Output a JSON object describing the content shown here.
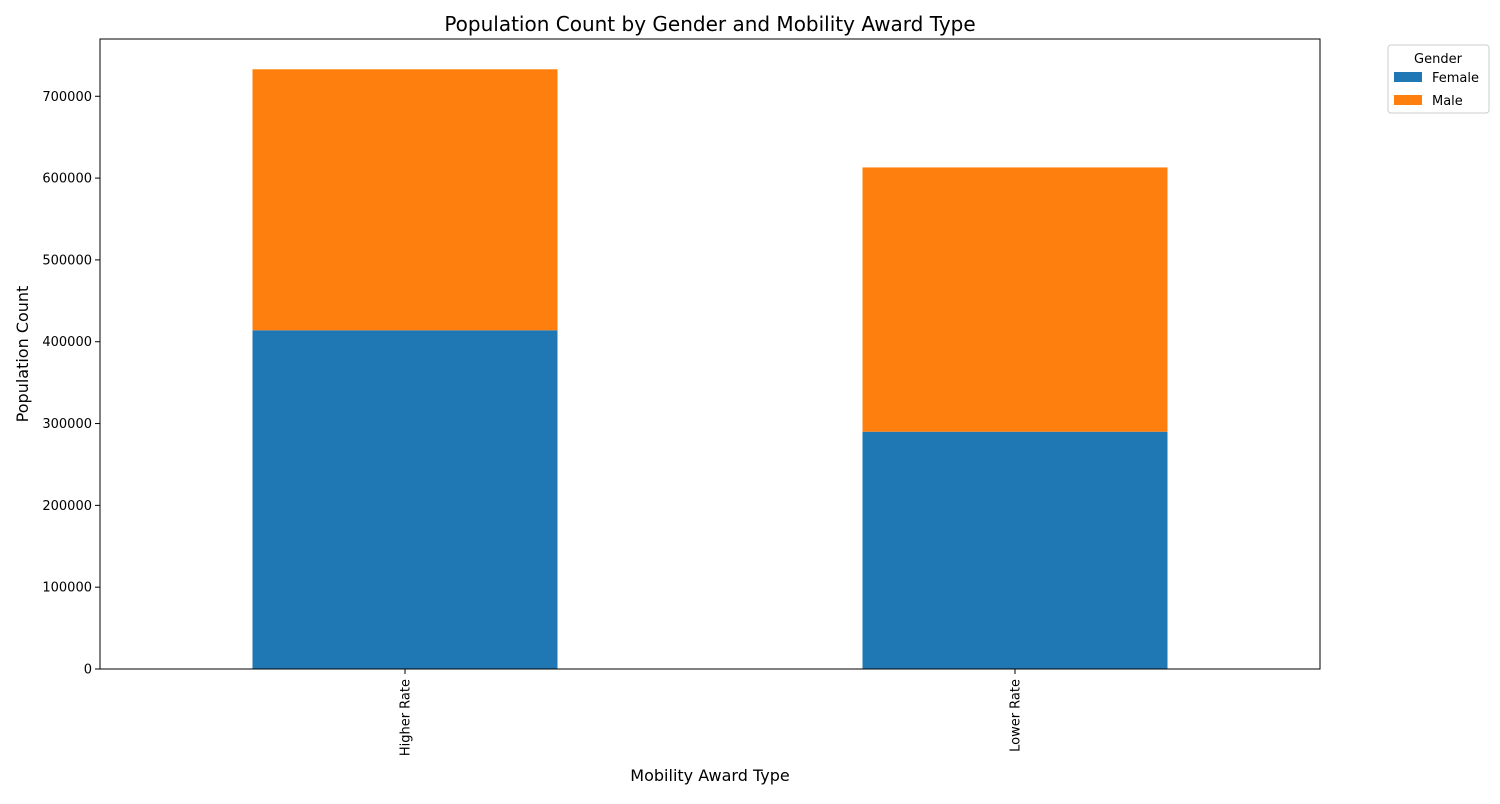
{
  "chart_data": {
    "type": "bar",
    "stacked": true,
    "title": "Population Count by Gender and Mobility Award Type",
    "xlabel": "Mobility Award Type",
    "ylabel": "Population Count",
    "categories": [
      "Higher Rate",
      "Lower Rate"
    ],
    "series": [
      {
        "name": "Female",
        "values": [
          414000,
          290000
        ],
        "color": "#1f77b4"
      },
      {
        "name": "Male",
        "values": [
          319000,
          323000
        ],
        "color": "#ff7f0e"
      }
    ],
    "ylim": [
      0,
      770000
    ],
    "yticks": [
      0,
      100000,
      200000,
      300000,
      400000,
      500000,
      600000,
      700000
    ],
    "ytick_labels": [
      "0",
      "100000",
      "200000",
      "300000",
      "400000",
      "500000",
      "600000",
      "700000"
    ],
    "grid": false,
    "legend": {
      "title": "Gender",
      "placement": "outside-top-right"
    }
  }
}
